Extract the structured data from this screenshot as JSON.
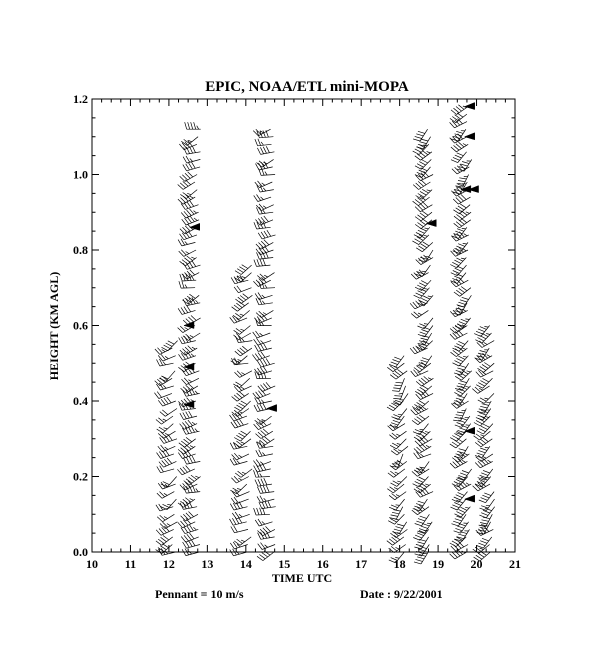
{
  "chart_data": {
    "type": "scatter",
    "title": "EPIC,   NOAA/ETL mini-MOPA",
    "xlabel": "TIME UTC",
    "ylabel": "HEIGHT (KM AGL)",
    "xlim": [
      10,
      21
    ],
    "ylim": [
      0,
      1.2
    ],
    "x_ticks": [
      "10",
      "11",
      "12",
      "13",
      "14",
      "15",
      "16",
      "17",
      "18",
      "19",
      "20",
      "21"
    ],
    "y_ticks": [
      "0.0",
      "0.2",
      "0.4",
      "0.6",
      "0.8",
      "1.0",
      "1.2"
    ],
    "grid": false,
    "footer_left": "Pennant = 10 m/s",
    "footer_right": "Date : 9/22/2001",
    "profiles": [
      {
        "time": 12.15,
        "top_km": 0.56,
        "speed_ms": 6,
        "dir_deg": 240
      },
      {
        "time": 12.75,
        "top_km": 1.12,
        "speed_ms": 8,
        "dir_deg": 250
      },
      {
        "time": 14.1,
        "top_km": 0.76,
        "speed_ms": 6,
        "dir_deg": 245
      },
      {
        "time": 14.7,
        "top_km": 1.12,
        "speed_ms": 7,
        "dir_deg": 250
      },
      {
        "time": 18.15,
        "top_km": 0.52,
        "speed_ms": 7,
        "dir_deg": 220
      },
      {
        "time": 18.8,
        "top_km": 1.12,
        "speed_ms": 8,
        "dir_deg": 230
      },
      {
        "time": 19.8,
        "top_km": 1.18,
        "speed_ms": 9,
        "dir_deg": 225
      },
      {
        "time": 20.4,
        "top_km": 0.6,
        "speed_ms": 8,
        "dir_deg": 225
      }
    ],
    "pennants": [
      {
        "time": 12.75,
        "height_km": 0.86
      },
      {
        "time": 12.6,
        "height_km": 0.6
      },
      {
        "time": 12.6,
        "height_km": 0.49
      },
      {
        "time": 12.6,
        "height_km": 0.39
      },
      {
        "time": 14.75,
        "height_km": 0.38
      },
      {
        "time": 18.9,
        "height_km": 0.87
      },
      {
        "time": 19.9,
        "height_km": 1.18
      },
      {
        "time": 19.9,
        "height_km": 1.1
      },
      {
        "time": 19.8,
        "height_km": 0.96
      },
      {
        "time": 20.0,
        "height_km": 0.96
      },
      {
        "time": 19.9,
        "height_km": 0.32
      },
      {
        "time": 19.9,
        "height_km": 0.14
      }
    ]
  }
}
